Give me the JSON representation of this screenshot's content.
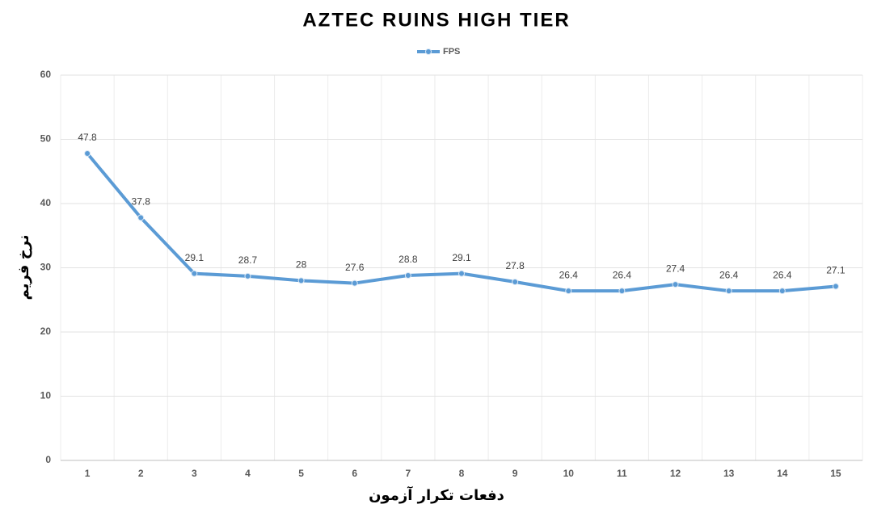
{
  "chart_data": {
    "type": "line",
    "title": "AZTEC RUINS HIGH TIER",
    "x_label": "دفعات تکرار آزمون",
    "y_label": "نرخ فریم",
    "categories": [
      "1",
      "2",
      "3",
      "4",
      "5",
      "6",
      "7",
      "8",
      "9",
      "10",
      "11",
      "12",
      "13",
      "14",
      "15"
    ],
    "series": [
      {
        "name": "FPS",
        "color": "#5b9bd5",
        "values": [
          47.8,
          37.8,
          29.1,
          28.7,
          28,
          27.6,
          28.8,
          29.1,
          27.8,
          26.4,
          26.4,
          27.4,
          26.4,
          26.4,
          27.1
        ]
      }
    ],
    "ylim": [
      0,
      60
    ],
    "yticks": [
      0,
      10,
      20,
      30,
      40,
      50,
      60
    ],
    "grid": true,
    "legend": "top"
  }
}
